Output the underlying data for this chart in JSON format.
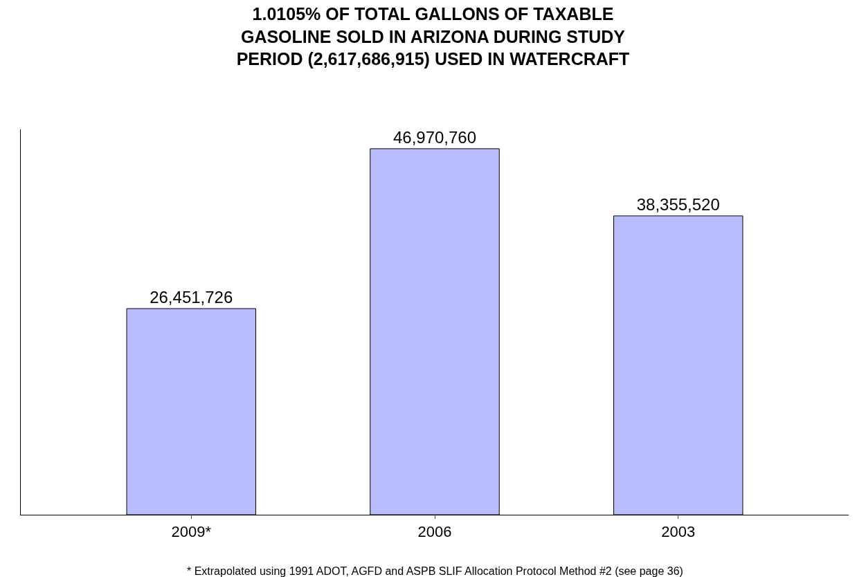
{
  "chart_data": {
    "type": "bar",
    "title": "1.0105% OF TOTAL GALLONS OF TAXABLE\nGASOLINE SOLD IN ARIZONA DURING STUDY\nPERIOD (2,617,686,915) USED IN WATERCRAFT",
    "categories": [
      "2009*",
      "2006",
      "2003"
    ],
    "values": [
      26451726,
      46970760,
      38355520
    ],
    "value_labels": [
      "26,451,726",
      "46,970,760",
      "38,355,520"
    ],
    "color": "#b8bcff",
    "tick_labels": "x",
    "annotations": [
      "* Extrapolated using 1991 ADOT, AGFD and ASPB SLIF Allocation Protocol Method #2 (see page 36)"
    ]
  }
}
